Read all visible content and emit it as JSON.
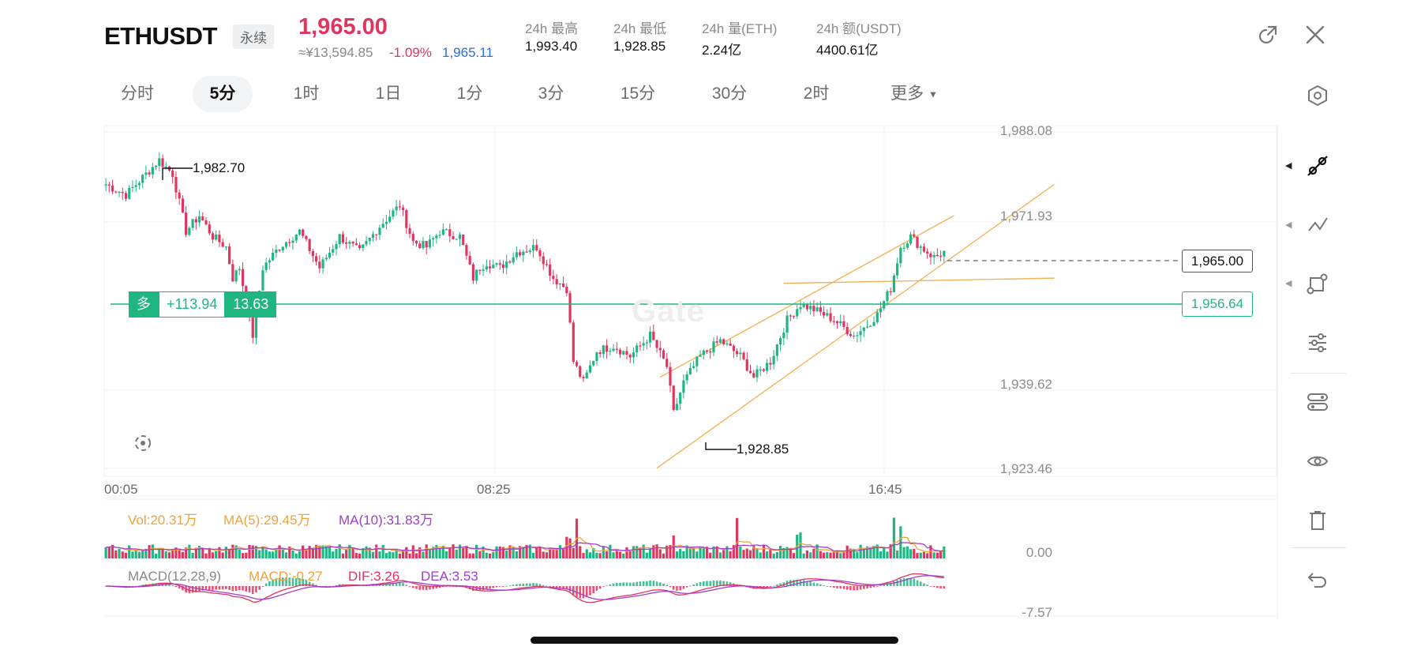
{
  "header": {
    "symbol": "ETHUSDT",
    "contract_type": "永续",
    "last_price": "1,965.00",
    "cny_price": "≈¥13,594.85",
    "change_pct": "-1.09%",
    "mark_price": "1,965.11",
    "stats": [
      {
        "label": "24h  最高",
        "value": "1,993.40"
      },
      {
        "label": "24h  最低",
        "value": "1,928.85"
      },
      {
        "label": "24h  量(ETH)",
        "value": "2.24亿"
      },
      {
        "label": "24h  额(USDT)",
        "value": "4400.61亿"
      }
    ]
  },
  "timeframes": [
    {
      "label": "分时",
      "active": false
    },
    {
      "label": "5分",
      "active": true
    },
    {
      "label": "1时",
      "active": false
    },
    {
      "label": "1日",
      "active": false
    },
    {
      "label": "1分",
      "active": false
    },
    {
      "label": "3分",
      "active": false
    },
    {
      "label": "15分",
      "active": false
    },
    {
      "label": "30分",
      "active": false
    },
    {
      "label": "2时",
      "active": false
    },
    {
      "label": "更多",
      "active": false
    }
  ],
  "position": {
    "side": "多",
    "pnl": "+113.94",
    "size": "13.63",
    "entry_price": "1,956.64"
  },
  "watermark": "Gate",
  "volume_legend": {
    "vol": "Vol:20.31万",
    "ma5": "MA(5):29.45万",
    "ma10": "MA(10):31.83万"
  },
  "macd_legend": {
    "name": "MACD(12,28,9)",
    "macd": "MACD:-0.27",
    "dif": "DIF:3.26",
    "dea": "DEA:3.53"
  },
  "volume_axis_label": "0.00",
  "macd_axis_label": "-7.57",
  "colors": {
    "up": "#20b682",
    "down": "#e0355f",
    "ma5": "#f0a23c",
    "ma10": "#a33ec8",
    "channel": "#f2b45a",
    "accent_blue": "#2b6fd6"
  },
  "icons": [
    "share-icon",
    "close-icon",
    "settings-hex-icon",
    "draw-line-icon",
    "trend-tool-icon",
    "shape-tool-icon",
    "adjust-sliders-icon",
    "indicator-toggle-icon",
    "visibility-icon",
    "delete-icon",
    "undo-icon",
    "fullscreen-icon"
  ],
  "chart_data": {
    "type": "candlestick",
    "price_ticks": [
      "1,988.08",
      "1,971.93",
      "1,939.62",
      "1,923.46"
    ],
    "ylim": [
      1923.46,
      1988.08
    ],
    "time_ticks": [
      "00:05",
      "08:25",
      "16:45"
    ],
    "last_price_label": "1,965.00",
    "position_price_label": "1,956.64",
    "high_marker": "1,982.70",
    "low_marker": "1,928.85",
    "price_path": [
      [
        0,
        1978
      ],
      [
        6,
        1976
      ],
      [
        12,
        1980
      ],
      [
        16,
        1982.7
      ],
      [
        20,
        1980
      ],
      [
        24,
        1969
      ],
      [
        28,
        1972
      ],
      [
        32,
        1968
      ],
      [
        36,
        1966
      ],
      [
        38,
        1960
      ],
      [
        40,
        1962
      ],
      [
        44,
        1949
      ],
      [
        47,
        1962
      ],
      [
        52,
        1966
      ],
      [
        58,
        1969
      ],
      [
        64,
        1962
      ],
      [
        70,
        1968
      ],
      [
        76,
        1965
      ],
      [
        82,
        1970
      ],
      [
        88,
        1974
      ],
      [
        92,
        1967
      ],
      [
        96,
        1966
      ],
      [
        100,
        1969
      ],
      [
        106,
        1968
      ],
      [
        110,
        1960
      ],
      [
        112,
        1962
      ],
      [
        114,
        1963
      ],
      [
        118,
        1962
      ],
      [
        123,
        1965
      ],
      [
        129,
        1966
      ],
      [
        134,
        1960
      ],
      [
        138,
        1958
      ],
      [
        140,
        1944
      ],
      [
        143,
        1940
      ],
      [
        147,
        1946
      ],
      [
        152,
        1947
      ],
      [
        157,
        1945
      ],
      [
        163,
        1949
      ],
      [
        168,
        1943
      ],
      [
        170,
        1934
      ],
      [
        173,
        1940
      ],
      [
        178,
        1945
      ],
      [
        184,
        1948
      ],
      [
        190,
        1945
      ],
      [
        194,
        1941
      ],
      [
        199,
        1944
      ],
      [
        204,
        1952
      ],
      [
        208,
        1955
      ],
      [
        212,
        1954
      ],
      [
        218,
        1952
      ],
      [
        224,
        1949
      ],
      [
        228,
        1951
      ],
      [
        231,
        1953
      ],
      [
        235,
        1958
      ],
      [
        238,
        1966
      ],
      [
        241,
        1968
      ],
      [
        244,
        1966
      ],
      [
        248,
        1964
      ],
      [
        251,
        1965
      ]
    ],
    "channel_lines": [
      {
        "from": [
          166,
          1941
        ],
        "to": [
          254,
          1972
        ]
      },
      {
        "from": [
          165,
          1923.5
        ],
        "to": [
          284,
          1978
        ]
      },
      {
        "from": [
          203,
          1959
        ],
        "to": [
          284,
          1960
        ]
      }
    ]
  }
}
